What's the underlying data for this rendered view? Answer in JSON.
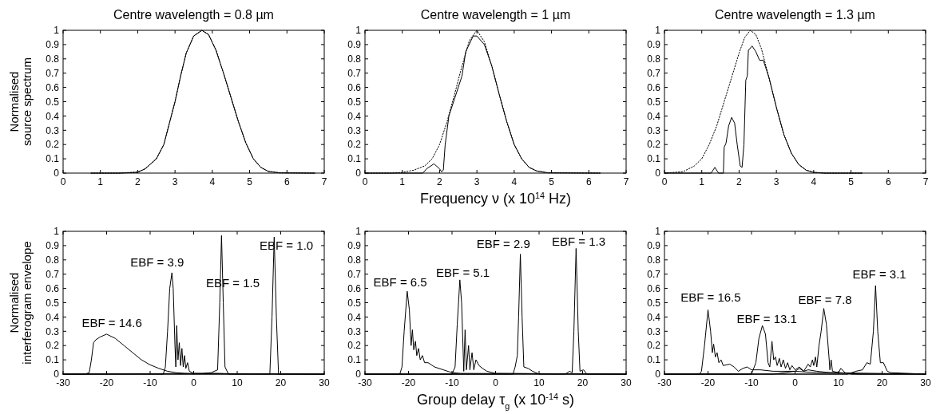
{
  "chart_data": [
    {
      "type": "line",
      "title": "Centre wavelength = 0.8 µm",
      "ylabel": "Normalised\nsource spectrum",
      "xlim": [
        0,
        7
      ],
      "xticks": [
        0,
        1,
        2,
        3,
        4,
        5,
        6,
        7
      ],
      "ylim": [
        0,
        1
      ],
      "yticks": [
        0,
        0.1,
        0.2,
        0.3,
        0.4,
        0.5,
        0.6,
        0.7,
        0.8,
        0.9,
        1
      ],
      "series": [
        {
          "color": "#000000",
          "line_style": "dotted",
          "x": [
            0.75,
            1.5,
            2.0,
            2.2,
            2.5,
            2.7,
            2.85,
            3.0,
            3.15,
            3.3,
            3.5,
            3.72,
            3.9,
            4.1,
            4.3,
            4.5,
            4.7,
            4.9,
            5.1,
            5.3,
            5.5,
            5.8,
            6.75
          ],
          "values": [
            0,
            0,
            0.008,
            0.03,
            0.1,
            0.2,
            0.35,
            0.5,
            0.68,
            0.84,
            0.96,
            1.0,
            0.97,
            0.86,
            0.7,
            0.53,
            0.36,
            0.21,
            0.1,
            0.04,
            0.012,
            0.002,
            0
          ]
        },
        {
          "color": "#000000",
          "line_style": "solid",
          "x": [
            0.75,
            1.5,
            2.0,
            2.2,
            2.5,
            2.7,
            2.85,
            3.0,
            3.15,
            3.3,
            3.5,
            3.72,
            3.9,
            4.1,
            4.3,
            4.5,
            4.7,
            4.9,
            5.1,
            5.3,
            5.5,
            5.8,
            6.75
          ],
          "values": [
            0,
            0,
            0.005,
            0.03,
            0.1,
            0.2,
            0.35,
            0.5,
            0.68,
            0.84,
            0.96,
            1.0,
            0.97,
            0.86,
            0.7,
            0.53,
            0.36,
            0.21,
            0.1,
            0.04,
            0.012,
            0.002,
            0
          ]
        }
      ]
    },
    {
      "type": "line",
      "title": "Centre wavelength = 1 µm",
      "xlabel": "Frequency ν (x 10$^{14}$ Hz)",
      "xlim": [
        0,
        7
      ],
      "xticks": [
        0,
        1,
        2,
        3,
        4,
        5,
        6,
        7
      ],
      "ylim": [
        0,
        1
      ],
      "yticks": [
        0,
        0.1,
        0.2,
        0.3,
        0.4,
        0.5,
        0.6,
        0.7,
        0.8,
        0.9,
        1
      ],
      "series": [
        {
          "color": "#000000",
          "line_style": "dotted",
          "x": [
            0,
            0.7,
            1.0,
            1.3,
            1.6,
            1.8,
            2.0,
            2.2,
            2.4,
            2.6,
            2.8,
            3.0,
            3.2,
            3.4,
            3.6,
            3.8,
            4.0,
            4.2,
            4.4,
            4.6,
            4.9,
            6.3
          ],
          "values": [
            0,
            0,
            0.005,
            0.02,
            0.05,
            0.1,
            0.2,
            0.36,
            0.55,
            0.75,
            0.93,
            1.0,
            0.92,
            0.75,
            0.55,
            0.36,
            0.2,
            0.1,
            0.04,
            0.015,
            0.002,
            0
          ]
        },
        {
          "color": "#000000",
          "line_style": "solid",
          "x": [
            0,
            1.55,
            1.65,
            1.85,
            2.0,
            2.05,
            2.1,
            2.15,
            2.25,
            2.4,
            2.6,
            2.7,
            2.9,
            3.0,
            3.2,
            3.4,
            3.6,
            3.8,
            4.0,
            4.2,
            4.4,
            4.6,
            4.9,
            6.3
          ],
          "values": [
            0,
            0,
            0.03,
            0.065,
            0.03,
            0.01,
            0.02,
            0.2,
            0.4,
            0.52,
            0.68,
            0.85,
            0.96,
            0.96,
            0.9,
            0.75,
            0.55,
            0.36,
            0.2,
            0.1,
            0.04,
            0.015,
            0.002,
            0
          ]
        }
      ]
    },
    {
      "type": "line",
      "title": "Centre wavelength = 1.3 µm",
      "xlim": [
        0,
        7
      ],
      "xticks": [
        0,
        1,
        2,
        3,
        4,
        5,
        6,
        7
      ],
      "ylim": [
        0,
        1
      ],
      "yticks": [
        0,
        0.1,
        0.2,
        0.3,
        0.4,
        0.5,
        0.6,
        0.7,
        0.8,
        0.9,
        1
      ],
      "series": [
        {
          "color": "#000000",
          "line_style": "dotted",
          "x": [
            0,
            0.5,
            0.8,
            1.0,
            1.2,
            1.4,
            1.6,
            1.8,
            2.0,
            2.15,
            2.3,
            2.45,
            2.6,
            2.8,
            3.0,
            3.2,
            3.4,
            3.6,
            3.8,
            4.0,
            4.3,
            5.3
          ],
          "values": [
            0,
            0.01,
            0.05,
            0.1,
            0.2,
            0.33,
            0.5,
            0.67,
            0.84,
            0.95,
            1.0,
            0.97,
            0.87,
            0.67,
            0.46,
            0.27,
            0.14,
            0.06,
            0.02,
            0.005,
            0,
            0
          ]
        },
        {
          "color": "#000000",
          "line_style": "solid",
          "x": [
            0,
            1.25,
            1.35,
            1.45,
            1.58,
            1.6,
            1.65,
            1.72,
            1.8,
            1.88,
            1.95,
            2.03,
            2.08,
            2.13,
            2.18,
            2.22,
            2.25,
            2.35,
            2.45,
            2.55,
            2.65,
            2.8,
            3.0,
            3.2,
            3.4,
            3.6,
            3.8,
            4.0,
            4.3,
            5.3
          ],
          "values": [
            0,
            0,
            0.04,
            0,
            0,
            0.18,
            0.21,
            0.33,
            0.39,
            0.35,
            0.2,
            0.05,
            0.04,
            0.2,
            0.65,
            0.68,
            0.86,
            0.89,
            0.85,
            0.79,
            0.79,
            0.67,
            0.46,
            0.27,
            0.14,
            0.06,
            0.02,
            0.005,
            0,
            0
          ]
        }
      ]
    },
    {
      "type": "line",
      "ylabel": "Normalised\ninterferogram envelope",
      "xlim": [
        -30,
        30
      ],
      "xticks": [
        -30,
        -20,
        -10,
        0,
        10,
        20,
        30
      ],
      "ylim": [
        0,
        1
      ],
      "yticks": [
        0,
        0.1,
        0.2,
        0.3,
        0.4,
        0.5,
        0.6,
        0.7,
        0.8,
        0.9,
        1
      ],
      "annotations": [
        "EBF = 14.6",
        "EBF = 3.9",
        "EBF = 1.5",
        "EBF = 1.0"
      ],
      "series": [
        {
          "color": "#000000",
          "x": [
            -30,
            -25,
            -24,
            -23.5,
            -23,
            -22.5,
            -21.5,
            -20,
            -18,
            -16,
            -14,
            -12,
            -10,
            -8,
            -6,
            -4,
            -2,
            0,
            3,
            5,
            8,
            30
          ],
          "values": [
            0,
            0,
            0.01,
            0.1,
            0.22,
            0.24,
            0.26,
            0.28,
            0.25,
            0.2,
            0.15,
            0.1,
            0.065,
            0.04,
            0.02,
            0.01,
            0.005,
            0.002,
            0.003,
            0.005,
            0.002,
            0
          ]
        },
        {
          "color": "#000000",
          "x": [
            -30,
            -7,
            -6.5,
            -6,
            -5.5,
            -5,
            -4.7,
            -4.3,
            -4.1,
            -3.9,
            -3.6,
            -3.3,
            -3.0,
            -2.7,
            -2.4,
            -2.1,
            -1.8,
            -1.4,
            -1,
            0,
            30
          ],
          "values": [
            0,
            0,
            0.05,
            0.3,
            0.6,
            0.71,
            0.6,
            0.2,
            0.05,
            0.34,
            0.1,
            0.22,
            0.06,
            0.18,
            0.05,
            0.13,
            0.04,
            0.08,
            0.02,
            0.005,
            0
          ]
        },
        {
          "color": "#000000",
          "x": [
            -30,
            2,
            4,
            5.5,
            6.0,
            6.4,
            6.8,
            7.2,
            8,
            30
          ],
          "values": [
            0,
            0.005,
            0.01,
            0.03,
            0.5,
            0.97,
            0.5,
            0.05,
            0,
            0
          ]
        },
        {
          "color": "#000000",
          "x": [
            -30,
            17.5,
            18,
            18.5,
            19,
            19.5,
            30
          ],
          "values": [
            0,
            0,
            0.4,
            0.96,
            0.4,
            0,
            0
          ]
        }
      ]
    },
    {
      "type": "line",
      "xlabel": "Group delay τ$_{g}$ (x 10$^{-14}$ s)",
      "xlim": [
        -30,
        30
      ],
      "xticks": [
        -30,
        -20,
        -10,
        0,
        10,
        20,
        30
      ],
      "ylim": [
        0,
        1
      ],
      "yticks": [
        0,
        0.1,
        0.2,
        0.3,
        0.4,
        0.5,
        0.6,
        0.7,
        0.8,
        0.9,
        1
      ],
      "annotations": [
        "EBF = 6.5",
        "EBF = 5.1",
        "EBF = 2.9",
        "EBF = 1.3"
      ],
      "series": [
        {
          "color": "#000000",
          "x": [
            -30,
            -22,
            -21.5,
            -21,
            -20.3,
            -19.8,
            -19.4,
            -19.1,
            -18.8,
            -18.4,
            -18.1,
            -17.7,
            -17.3,
            -16.8,
            -16.3,
            -15.5,
            -14,
            -12,
            -10,
            -8,
            30
          ],
          "values": [
            0,
            0,
            0.05,
            0.3,
            0.58,
            0.45,
            0.2,
            0.31,
            0.17,
            0.23,
            0.13,
            0.18,
            0.1,
            0.13,
            0.08,
            0.08,
            0.05,
            0.03,
            0.01,
            0.005,
            0
          ]
        },
        {
          "color": "#000000",
          "x": [
            -30,
            -10,
            -9.3,
            -8.8,
            -8.2,
            -7.8,
            -7.3,
            -7.0,
            -6.7,
            -6.2,
            -5.9,
            -5.4,
            -5.0,
            -4.5,
            -3.8,
            -3,
            -2,
            0,
            30
          ],
          "values": [
            0,
            0,
            0.05,
            0.35,
            0.66,
            0.5,
            0.02,
            0.31,
            0.03,
            0.2,
            0.03,
            0.15,
            0.03,
            0.1,
            0.06,
            0.04,
            0.02,
            0.005,
            0
          ]
        },
        {
          "color": "#000000",
          "x": [
            -30,
            4,
            4.5,
            5.0,
            5.3,
            5.7,
            6.1,
            6.5,
            7.5,
            8.5,
            10,
            30
          ],
          "values": [
            0,
            0,
            0.05,
            0.13,
            0.4,
            0.84,
            0.4,
            0.05,
            0.04,
            0.02,
            0,
            0
          ]
        },
        {
          "color": "#000000",
          "x": [
            -30,
            16,
            17,
            17.6,
            18,
            18.5,
            19,
            19.4,
            20.2,
            21,
            30
          ],
          "values": [
            0,
            0,
            0.02,
            0.01,
            0.3,
            0.88,
            0.3,
            0.02,
            0.03,
            0,
            0
          ]
        }
      ]
    },
    {
      "type": "line",
      "xlim": [
        -30,
        30
      ],
      "xticks": [
        -30,
        -20,
        -10,
        0,
        10,
        20,
        30
      ],
      "ylim": [
        0,
        1
      ],
      "yticks": [
        0,
        0.1,
        0.2,
        0.3,
        0.4,
        0.5,
        0.6,
        0.7,
        0.8,
        0.9,
        1
      ],
      "annotations": [
        "EBF = 16.5",
        "EBF = 13.1",
        "EBF = 7.8",
        "EBF = 3.1"
      ],
      "series": [
        {
          "color": "#000000",
          "x": [
            -30,
            -22,
            -21.5,
            -20.8,
            -20,
            -19.4,
            -19,
            -18.7,
            -18.3,
            -17.9,
            -17.5,
            -17,
            -16.5,
            -15,
            -14,
            -13,
            -12,
            -11,
            -10,
            -8,
            -5,
            0,
            5,
            10,
            15,
            30
          ],
          "values": [
            0,
            0,
            0.02,
            0.2,
            0.45,
            0.3,
            0.15,
            0.21,
            0.12,
            0.15,
            0.08,
            0.1,
            0.06,
            0.07,
            0.05,
            0.02,
            0.04,
            0.05,
            0.03,
            0.03,
            0.02,
            0.02,
            0.01,
            0.01,
            0,
            0
          ]
        },
        {
          "color": "#000000",
          "x": [
            -30,
            -10,
            -9,
            -8.3,
            -7.5,
            -6.8,
            -6.2,
            -5.8,
            -5.3,
            -4.9,
            -4.5,
            -4.1,
            -3.6,
            -3.2,
            -2.7,
            -2.2,
            -1.7,
            -1.2,
            -0.7,
            0,
            1,
            2,
            3,
            5,
            8,
            30
          ],
          "values": [
            0,
            0,
            0.08,
            0.25,
            0.34,
            0.28,
            0.08,
            0.05,
            0.23,
            0.1,
            0.12,
            0.06,
            0.11,
            0.05,
            0.1,
            0.04,
            0.08,
            0.03,
            0.06,
            0.03,
            0.05,
            0.02,
            0.03,
            0.02,
            0.01,
            0
          ]
        },
        {
          "color": "#000000",
          "x": [
            -30,
            -5,
            0,
            1,
            2,
            3,
            3.5,
            4,
            4.3,
            4.7,
            5,
            5.5,
            6,
            6.6,
            7.2,
            7.8,
            8.0,
            8.3,
            8.6,
            10,
            10.5,
            11.5,
            13,
            30
          ],
          "values": [
            0,
            0,
            0.02,
            0.04,
            0.02,
            0.07,
            0.05,
            0.1,
            0.06,
            0.12,
            0.05,
            0.2,
            0.3,
            0.46,
            0.35,
            0.12,
            0.03,
            0.1,
            0.02,
            0.01,
            0.04,
            0.01,
            0,
            0
          ]
        },
        {
          "color": "#000000",
          "x": [
            -30,
            12,
            14,
            15.5,
            16.5,
            17.3,
            18,
            18.5,
            19,
            19.6,
            20.3,
            21.2,
            22,
            30
          ],
          "values": [
            0,
            0,
            0.02,
            0.03,
            0.08,
            0.07,
            0.3,
            0.62,
            0.3,
            0.08,
            0.08,
            0.02,
            0.01,
            0
          ]
        }
      ]
    }
  ]
}
